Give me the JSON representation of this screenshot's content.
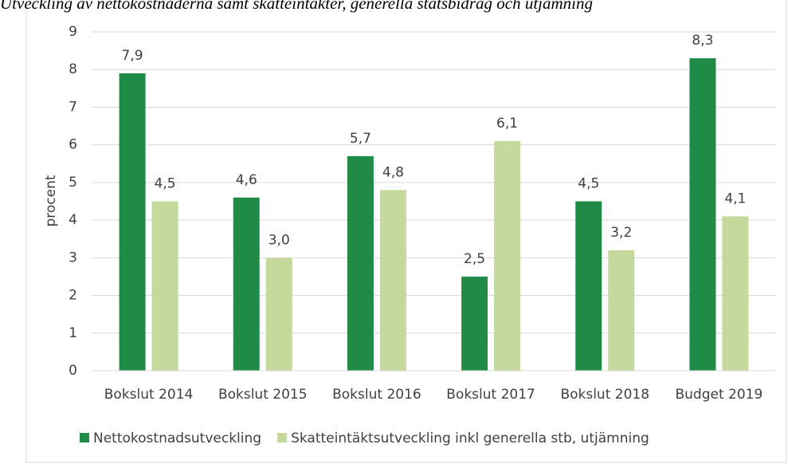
{
  "chart_data": {
    "type": "bar",
    "title": "Utveckling av nettokostnaderna samt skatteintäkter, generella statsbidrag och utjämning",
    "y_label": "procent",
    "categories": [
      "Bokslut 2014",
      "Bokslut 2015",
      "Bokslut 2016",
      "Bokslut 2017",
      "Bokslut 2018",
      "Budget 2019"
    ],
    "series": [
      {
        "name": "Nettokostnadsutveckling",
        "color": "#1f8b46",
        "values": [
          7.9,
          4.6,
          5.7,
          2.5,
          4.5,
          8.3
        ],
        "value_labels": [
          "7,9",
          "4,6",
          "5,7",
          "2,5",
          "4,5",
          "8,3"
        ]
      },
      {
        "name": "Skatteintäktsutveckling inkl generella stb, utjämning",
        "color": "#c4d99b",
        "values": [
          4.5,
          3.0,
          4.8,
          6.1,
          3.2,
          4.1
        ],
        "value_labels": [
          "4,5",
          "3,0",
          "4,8",
          "6,1",
          "3,2",
          "4,1"
        ]
      }
    ],
    "ylim": [
      0,
      9
    ],
    "yticks": [
      0,
      1,
      2,
      3,
      4,
      5,
      6,
      7,
      8,
      9
    ],
    "grid": true,
    "legend": "bottom"
  }
}
